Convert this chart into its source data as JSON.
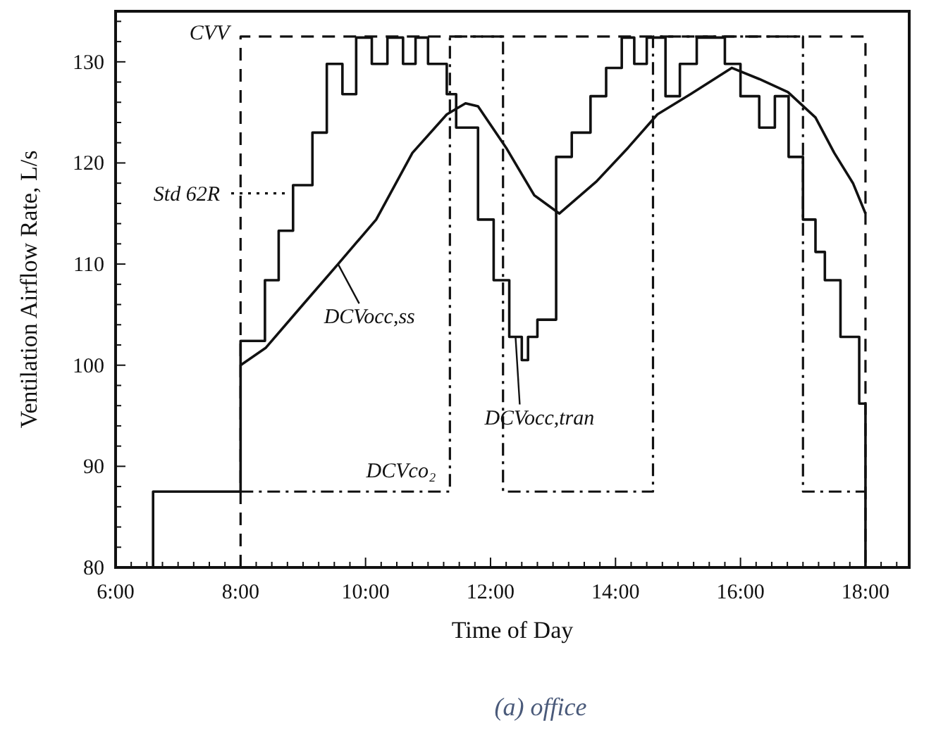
{
  "chart_data": {
    "type": "line",
    "xlabel": "Time of Day",
    "ylabel": "Ventilation Airflow Rate, L/s",
    "xlim": [
      6,
      18.7
    ],
    "ylim": [
      80,
      135
    ],
    "xticks": [
      {
        "value": 6,
        "label": "6:00"
      },
      {
        "value": 6.25,
        "label": null
      },
      {
        "value": 6.5,
        "label": null
      },
      {
        "value": 6.75,
        "label": null
      },
      {
        "value": 7,
        "label": null
      },
      {
        "value": 7.25,
        "label": null
      },
      {
        "value": 7.5,
        "label": null
      },
      {
        "value": 7.75,
        "label": null
      },
      {
        "value": 8,
        "label": "8:00"
      },
      {
        "value": 8.25,
        "label": null
      },
      {
        "value": 8.5,
        "label": null
      },
      {
        "value": 8.75,
        "label": null
      },
      {
        "value": 9,
        "label": null
      },
      {
        "value": 9.25,
        "label": null
      },
      {
        "value": 9.5,
        "label": null
      },
      {
        "value": 9.75,
        "label": null
      },
      {
        "value": 10,
        "label": "10:00"
      },
      {
        "value": 10.25,
        "label": null
      },
      {
        "value": 10.5,
        "label": null
      },
      {
        "value": 10.75,
        "label": null
      },
      {
        "value": 11,
        "label": null
      },
      {
        "value": 11.25,
        "label": null
      },
      {
        "value": 11.5,
        "label": null
      },
      {
        "value": 11.75,
        "label": null
      },
      {
        "value": 12,
        "label": "12:00"
      },
      {
        "value": 12.25,
        "label": null
      },
      {
        "value": 12.5,
        "label": null
      },
      {
        "value": 12.75,
        "label": null
      },
      {
        "value": 13,
        "label": null
      },
      {
        "value": 13.25,
        "label": null
      },
      {
        "value": 13.5,
        "label": null
      },
      {
        "value": 13.75,
        "label": null
      },
      {
        "value": 14,
        "label": "14:00"
      },
      {
        "value": 14.25,
        "label": null
      },
      {
        "value": 14.5,
        "label": null
      },
      {
        "value": 14.75,
        "label": null
      },
      {
        "value": 15,
        "label": null
      },
      {
        "value": 15.25,
        "label": null
      },
      {
        "value": 15.5,
        "label": null
      },
      {
        "value": 15.75,
        "label": null
      },
      {
        "value": 16,
        "label": "16:00"
      },
      {
        "value": 16.25,
        "label": null
      },
      {
        "value": 16.5,
        "label": null
      },
      {
        "value": 16.75,
        "label": null
      },
      {
        "value": 17,
        "label": null
      },
      {
        "value": 17.25,
        "label": null
      },
      {
        "value": 17.5,
        "label": null
      },
      {
        "value": 17.75,
        "label": null
      },
      {
        "value": 18,
        "label": "18:00"
      },
      {
        "value": 18.25,
        "label": null
      },
      {
        "value": 18.5,
        "label": null
      }
    ],
    "yticks": [
      80,
      {
        "value": 82,
        "label": null
      },
      {
        "value": 84,
        "label": null
      },
      {
        "value": 86,
        "label": null
      },
      {
        "value": 88,
        "label": null
      },
      90,
      {
        "value": 92,
        "label": null
      },
      {
        "value": 94,
        "label": null
      },
      {
        "value": 96,
        "label": null
      },
      {
        "value": 98,
        "label": null
      },
      100,
      {
        "value": 102,
        "label": null
      },
      {
        "value": 104,
        "label": null
      },
      {
        "value": 106,
        "label": null
      },
      {
        "value": 108,
        "label": null
      },
      110,
      {
        "value": 112,
        "label": null
      },
      {
        "value": 114,
        "label": null
      },
      {
        "value": 116,
        "label": null
      },
      {
        "value": 118,
        "label": null
      },
      120,
      {
        "value": 122,
        "label": null
      },
      {
        "value": 124,
        "label": null
      },
      {
        "value": 126,
        "label": null
      },
      {
        "value": 128,
        "label": null
      },
      130,
      {
        "value": 132,
        "label": null
      },
      {
        "value": 134,
        "label": null
      }
    ],
    "grid": false,
    "marker": "none",
    "series": [
      {
        "type": "step",
        "color": "#111111",
        "line_style": "solid",
        "x": [
          6.6,
          6.6,
          8.0,
          8.39,
          8.61,
          8.84,
          9.15,
          9.38,
          9.63,
          9.85,
          10.1,
          10.35,
          10.6,
          10.8,
          11.0,
          11.3,
          11.45,
          11.8,
          12.05,
          12.3,
          12.5,
          12.6,
          12.75,
          13.05,
          13.3,
          13.6,
          13.85,
          14.1,
          14.3,
          14.5,
          14.8,
          15.03,
          15.3,
          15.75,
          16.0,
          16.3,
          16.55,
          16.77,
          17.0,
          17.2,
          17.35,
          17.6,
          17.9,
          18.0
        ],
        "values": [
          80,
          87.5,
          102.4,
          108.4,
          113.3,
          117.8,
          123,
          129.8,
          126.8,
          132.4,
          129.8,
          132.4,
          129.8,
          132.4,
          129.8,
          126.8,
          123.5,
          114.4,
          108.4,
          102.8,
          100.5,
          102.8,
          104.5,
          120.6,
          123,
          126.6,
          129.4,
          132.4,
          129.8,
          132.4,
          126.6,
          129.8,
          132.4,
          129.8,
          126.6,
          123.5,
          126.6,
          120.6,
          114.4,
          111.2,
          108.4,
          102.8,
          96.2,
          80
        ]
      },
      {
        "color": "#111111",
        "line_style": "solid",
        "x": [
          8,
          8.4,
          9.0,
          9.56,
          10.17,
          10.75,
          11.3,
          11.6,
          11.8,
          12.26,
          12.7,
          13.1,
          13.7,
          14.2,
          14.67,
          15.2,
          15.86,
          16.3,
          16.76,
          17.2,
          17.5,
          17.8,
          18
        ],
        "values": [
          100,
          101.7,
          106,
          110,
          114.4,
          121,
          124.8,
          125.9,
          125.6,
          121.4,
          116.8,
          115,
          118.2,
          121.5,
          124.8,
          126.8,
          129.4,
          128.3,
          127,
          124.5,
          121,
          118,
          115
        ]
      },
      {
        "color": "#111111",
        "line_style": "dashed",
        "x": [
          8,
          8,
          18,
          18
        ],
        "values": [
          80,
          132.5,
          132.5,
          80
        ]
      },
      {
        "color": "#111111",
        "line_style": "dashdot",
        "x": [
          8,
          11.35,
          11.35,
          12.2,
          12.2,
          14.6,
          14.6,
          17,
          17,
          18
        ],
        "values": [
          87.5,
          87.5,
          132.5,
          132.5,
          87.5,
          87.5,
          132.5,
          132.5,
          87.5,
          87.5
        ]
      },
      {
        "color": "#111111",
        "line_style": "dotted",
        "x": [
          7.85,
          8.75
        ],
        "values": [
          117,
          117
        ]
      }
    ],
    "annotations": [
      {
        "text": "CVV",
        "x": 8,
        "y": 132.5
      },
      {
        "text": "Std 62R",
        "x": 7.85,
        "y": 117
      },
      {
        "text": "DCVocc,ss",
        "x": 9.56,
        "y": 110
      },
      {
        "text": "DCVco₂",
        "x": 11.35,
        "y": 87.5
      },
      {
        "text": "DCVocc,tran",
        "x": 12.4,
        "y": 102.8
      },
      "(a) office"
    ]
  }
}
